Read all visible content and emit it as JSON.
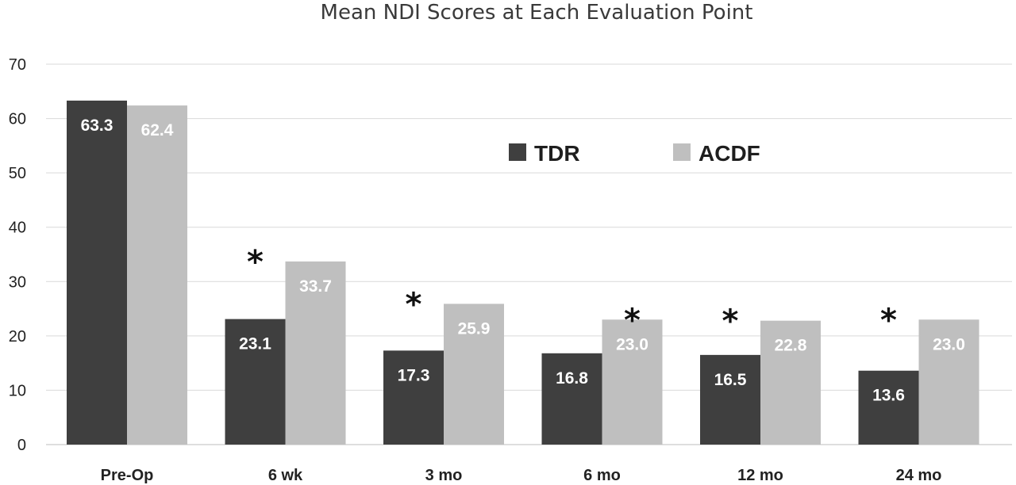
{
  "chart_data": {
    "type": "bar",
    "title": "Mean NDI Scores at Each Evaluation Point",
    "xlabel": "",
    "ylabel": "",
    "ylim": [
      0,
      70
    ],
    "yticks": [
      0,
      10,
      20,
      30,
      40,
      50,
      60,
      70
    ],
    "grid": true,
    "legend_position": "upper-center",
    "categories": [
      "Pre-Op",
      "6 wk",
      "3 mo",
      "6 mo",
      "12 mo",
      "24 mo"
    ],
    "series": [
      {
        "name": "TDR",
        "color": "#3f3f3f",
        "values": [
          63.3,
          23.1,
          17.3,
          16.8,
          16.5,
          13.6
        ],
        "labels": [
          "63.3",
          "23.1",
          "17.3",
          "16.8",
          "16.5",
          "13.6"
        ]
      },
      {
        "name": "ACDF",
        "color": "#bfbfbf",
        "values": [
          62.4,
          33.7,
          25.9,
          23.0,
          22.8,
          23.0
        ],
        "labels": [
          "62.4",
          "33.7",
          "25.9",
          "23.0",
          "22.8",
          "23.0"
        ]
      }
    ],
    "annotations": [
      {
        "category": "6 wk",
        "series": "TDR",
        "text": "*"
      },
      {
        "category": "3 mo",
        "series": "TDR",
        "text": "*"
      },
      {
        "category": "6 mo",
        "series": "ACDF",
        "text": "*"
      },
      {
        "category": "12 mo",
        "series": "TDR",
        "text": "*"
      },
      {
        "category": "24 mo",
        "series": "TDR",
        "text": "*"
      }
    ]
  }
}
